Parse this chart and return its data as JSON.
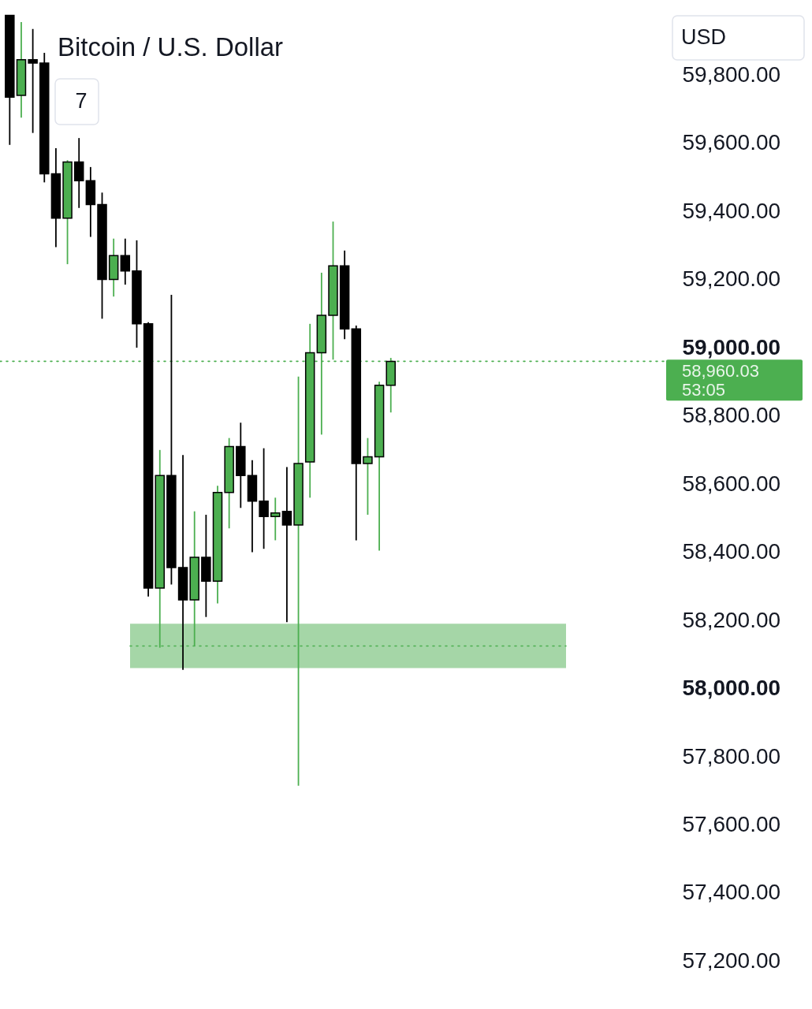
{
  "chart_data": {
    "type": "candlestick",
    "title": "Bitcoin / U.S. Dollar",
    "categories": [
      null,
      null,
      null,
      null,
      null,
      null,
      null,
      null,
      null,
      null,
      null,
      null,
      null,
      null,
      null,
      null,
      null,
      null,
      null,
      null,
      null,
      null,
      null,
      null,
      null,
      null,
      null,
      null,
      null,
      null,
      null,
      null,
      null,
      null,
      null,
      null,
      null,
      null,
      null,
      null,
      null,
      null,
      null,
      null,
      null,
      null,
      null,
      null,
      null,
      null,
      null,
      null,
      null,
      null,
      null,
      null,
      null
    ],
    "ohlc": [
      [
        59975,
        59975,
        59595,
        59735
      ],
      [
        59740,
        59955,
        59675,
        59845
      ],
      [
        59845,
        59935,
        59630,
        59835
      ],
      [
        59835,
        59865,
        59485,
        59510
      ],
      [
        59510,
        59585,
        59295,
        59380
      ],
      [
        59380,
        59550,
        59245,
        59545
      ],
      [
        59545,
        59615,
        59410,
        59490
      ],
      [
        59490,
        59530,
        59325,
        59420
      ],
      [
        59420,
        59455,
        59085,
        59200
      ],
      [
        59200,
        59320,
        59150,
        59270
      ],
      [
        59270,
        59320,
        59185,
        59225
      ],
      [
        59225,
        59315,
        59000,
        59070
      ],
      [
        59070,
        59075,
        58270,
        58295
      ],
      [
        58295,
        58700,
        58120,
        58625
      ],
      [
        58625,
        59155,
        58305,
        58355
      ],
      [
        58355,
        58685,
        58055,
        58260
      ],
      [
        58260,
        58520,
        58125,
        58385
      ],
      [
        58385,
        58510,
        58210,
        58315
      ],
      [
        58315,
        58595,
        58250,
        58575
      ],
      [
        58575,
        58735,
        58470,
        58710
      ],
      [
        58710,
        58780,
        58530,
        58625
      ],
      [
        58625,
        58670,
        58400,
        58550
      ],
      [
        58550,
        58705,
        58410,
        58505
      ],
      [
        58505,
        58560,
        58435,
        58515
      ],
      [
        58520,
        58650,
        58195,
        58480
      ],
      [
        58480,
        58915,
        57715,
        58660
      ],
      [
        58665,
        59070,
        58560,
        58985
      ],
      [
        58985,
        59220,
        58745,
        59095
      ],
      [
        59095,
        59370,
        58965,
        59240
      ],
      [
        59240,
        59285,
        59025,
        59055
      ],
      [
        59055,
        59065,
        58435,
        58660
      ],
      [
        58660,
        58735,
        58510,
        58680
      ],
      [
        58680,
        58900,
        58405,
        58890
      ],
      [
        58890,
        58970,
        58810,
        58960
      ],
      null,
      null,
      null,
      null,
      null,
      null,
      null,
      null,
      null,
      null,
      null,
      null,
      null,
      null,
      null,
      null,
      null,
      null,
      null,
      null,
      null,
      null,
      null
    ],
    "colors": [
      "#000000",
      "#4caf50",
      "#000000",
      "#000000",
      "#000000",
      "#4caf50",
      "#000000",
      "#000000",
      "#000000",
      "#4caf50",
      "#000000",
      "#000000",
      "#000000",
      "#4caf50",
      "#000000",
      "#000000",
      "#4caf50",
      "#000000",
      "#4caf50",
      "#4caf50",
      "#000000",
      "#000000",
      "#000000",
      "#4caf50",
      "#000000",
      "#4caf50",
      "#4caf50",
      "#4caf50",
      "#4caf50",
      "#000000",
      "#000000",
      "#4caf50",
      "#4caf50",
      "#4caf50",
      null,
      null,
      null,
      null,
      null,
      null,
      null,
      null,
      null,
      null,
      null,
      null,
      null,
      null,
      null,
      null,
      null,
      null,
      null,
      null,
      null,
      null,
      null
    ],
    "ylim": [
      57060,
      60020
    ],
    "yticks": [
      {
        "value": 57200,
        "label": "57,200.00"
      },
      {
        "value": 57400,
        "label": "57,400.00"
      },
      {
        "value": 57600,
        "label": "57,600.00"
      },
      {
        "value": 57800,
        "label": "57,800.00"
      },
      {
        "value": 58000,
        "label": "58,000.00"
      },
      {
        "value": 58200,
        "label": "58,200.00"
      },
      {
        "value": 58400,
        "label": "58,400.00"
      },
      {
        "value": 58600,
        "label": "58,600.00"
      },
      {
        "value": 58800,
        "label": "58,800.00"
      },
      {
        "value": 59000,
        "label": "59,000.00"
      },
      {
        "value": 59200,
        "label": "59,200.00"
      },
      {
        "value": 59400,
        "label": "59,400.00"
      },
      {
        "value": 59600,
        "label": "59,600.00"
      },
      {
        "value": 59800,
        "label": "59,800.00"
      }
    ],
    "tick_labels": "y",
    "ref_lines": [
      {
        "axis": "y",
        "value": 58960.03,
        "label": "58,960.03\n53:05",
        "color": "#4caf50",
        "line_style": "dotted"
      },
      {
        "axis": "y",
        "value": 58125,
        "color": "#4caf50",
        "line_style": "dotted"
      }
    ],
    "bands": [
      {
        "axis": "y",
        "from": 58060,
        "to": 58190,
        "color": "#a5d6a7"
      }
    ],
    "annotations": [
      "USD",
      "7"
    ]
  }
}
